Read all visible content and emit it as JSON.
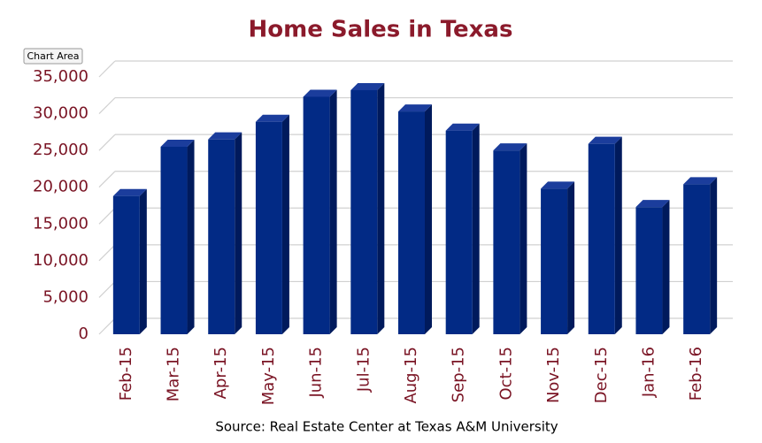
{
  "chart_data": {
    "type": "bar3d",
    "title": "Home Sales in Texas",
    "source": "Source: Real Estate Center at Texas A&M University",
    "tooltip": "Chart Area",
    "categories": [
      "Feb-15",
      "Mar-15",
      "Apr-15",
      "May-15",
      "Jun-15",
      "Jul-15",
      "Aug-15",
      "Sep-15",
      "Oct-15",
      "Nov-15",
      "Dec-15",
      "Jan-16",
      "Feb-16"
    ],
    "values": [
      18800,
      25500,
      26500,
      28900,
      32300,
      33200,
      30300,
      27700,
      25000,
      19800,
      25900,
      17300,
      20400
    ],
    "color": "#022a85",
    "ylim": [
      0,
      35000
    ],
    "yticks": [
      0,
      {
        "value": 5000,
        "label": "5,000"
      },
      {
        "value": 10000,
        "label": "10,000"
      },
      {
        "value": 15000,
        "label": "15,000"
      },
      {
        "value": 20000,
        "label": "20,000"
      },
      {
        "value": 25000,
        "label": "25,000"
      },
      {
        "value": 30000,
        "label": "30,000"
      },
      {
        "value": 35000,
        "label": "35,000"
      }
    ],
    "grid": true
  }
}
